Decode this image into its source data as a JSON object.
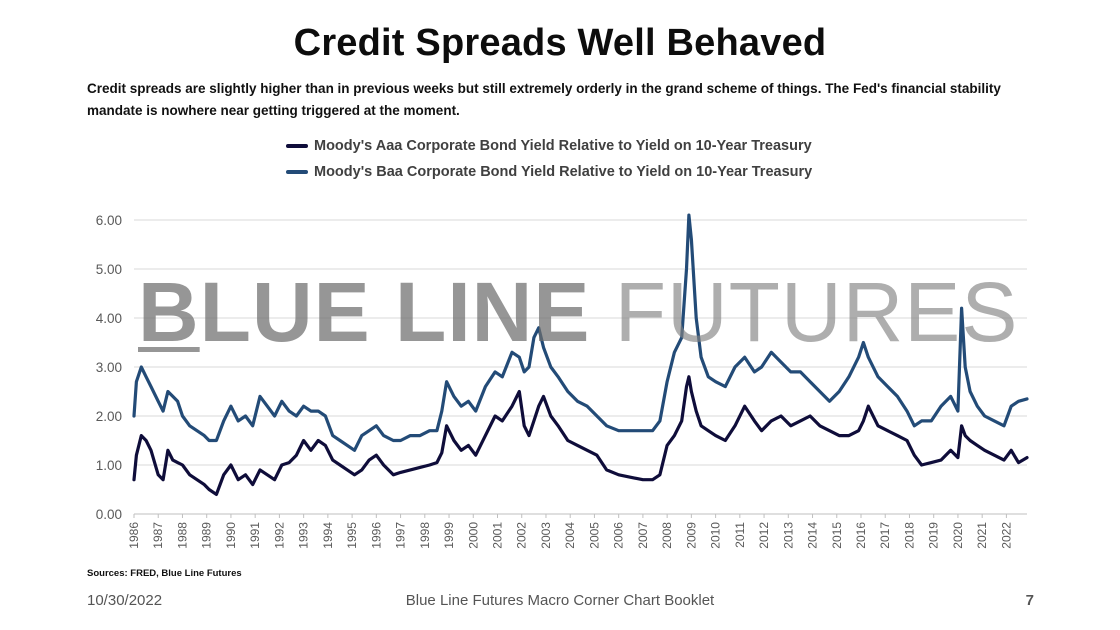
{
  "title": "Credit Spreads Well Behaved",
  "subtitle": "Credit spreads are slightly higher than in previous weeks but still extremely orderly in the grand scheme of things. The Fed's financial stability mandate is nowhere near getting triggered at the moment.",
  "watermark": {
    "part1": "B",
    "part2": "LUE LINE",
    "part3": " FUTURES"
  },
  "sources": "Sources: FRED, Blue Line Futures",
  "footer": {
    "date": "10/30/2022",
    "center": "Blue Line Futures Macro Corner Chart Booklet",
    "page": "7"
  },
  "chart_data": {
    "type": "line",
    "title": "",
    "xlabel": "",
    "ylabel": "",
    "ylim": [
      0,
      6
    ],
    "xlim": [
      1986,
      2022.85
    ],
    "y_ticks": [
      "0.00",
      "1.00",
      "2.00",
      "3.00",
      "4.00",
      "5.00",
      "6.00"
    ],
    "x_ticks": [
      "1986",
      "1987",
      "1988",
      "1989",
      "1990",
      "1991",
      "1992",
      "1993",
      "1994",
      "1995",
      "1996",
      "1997",
      "1998",
      "1999",
      "2000",
      "2001",
      "2002",
      "2003",
      "2004",
      "2005",
      "2006",
      "2007",
      "2008",
      "2009",
      "2010",
      "2011",
      "2012",
      "2013",
      "2014",
      "2015",
      "2016",
      "2017",
      "2018",
      "2019",
      "2020",
      "2021",
      "2022"
    ],
    "grid": true,
    "legend_position": "top-center",
    "series": [
      {
        "name": "Moody's Aaa Corporate Bond Yield Relative to Yield on 10-Year Treasury",
        "color": "#0f0d3a",
        "x": [
          1986.0,
          1986.1,
          1986.3,
          1986.5,
          1986.7,
          1987.0,
          1987.2,
          1987.4,
          1987.6,
          1987.8,
          1988.0,
          1988.3,
          1988.6,
          1988.9,
          1989.1,
          1989.4,
          1989.7,
          1990.0,
          1990.3,
          1990.6,
          1990.9,
          1991.2,
          1991.5,
          1991.8,
          1992.1,
          1992.4,
          1992.7,
          1993.0,
          1993.3,
          1993.6,
          1993.9,
          1994.2,
          1994.5,
          1994.8,
          1995.1,
          1995.4,
          1995.7,
          1996.0,
          1996.3,
          1996.7,
          1997.0,
          1997.4,
          1997.8,
          1998.2,
          1998.5,
          1998.7,
          1998.9,
          1999.2,
          1999.5,
          1999.8,
          2000.1,
          2000.5,
          2000.9,
          2001.2,
          2001.6,
          2001.9,
          2002.1,
          2002.3,
          2002.5,
          2002.7,
          2002.9,
          2003.2,
          2003.5,
          2003.9,
          2004.3,
          2004.7,
          2005.1,
          2005.5,
          2006.0,
          2006.5,
          2007.0,
          2007.4,
          2007.7,
          2008.0,
          2008.3,
          2008.6,
          2008.8,
          2008.9,
          2009.0,
          2009.2,
          2009.4,
          2009.7,
          2010.0,
          2010.4,
          2010.8,
          2011.2,
          2011.6,
          2011.9,
          2012.3,
          2012.7,
          2013.1,
          2013.5,
          2013.9,
          2014.3,
          2014.7,
          2015.1,
          2015.5,
          2015.9,
          2016.1,
          2016.3,
          2016.7,
          2017.1,
          2017.5,
          2017.9,
          2018.2,
          2018.5,
          2018.9,
          2019.3,
          2019.7,
          2020.0,
          2020.15,
          2020.3,
          2020.5,
          2020.8,
          2021.1,
          2021.5,
          2021.9,
          2022.2,
          2022.5,
          2022.85
        ],
        "y": [
          0.7,
          1.2,
          1.6,
          1.5,
          1.3,
          0.8,
          0.7,
          1.3,
          1.1,
          1.05,
          1.0,
          0.8,
          0.7,
          0.6,
          0.5,
          0.4,
          0.8,
          1.0,
          0.7,
          0.8,
          0.6,
          0.9,
          0.8,
          0.7,
          1.0,
          1.05,
          1.2,
          1.5,
          1.3,
          1.5,
          1.4,
          1.1,
          1.0,
          0.9,
          0.8,
          0.9,
          1.1,
          1.2,
          1.0,
          0.8,
          0.85,
          0.9,
          0.95,
          1.0,
          1.05,
          1.25,
          1.8,
          1.5,
          1.3,
          1.4,
          1.2,
          1.6,
          2.0,
          1.9,
          2.2,
          2.5,
          1.8,
          1.6,
          1.9,
          2.2,
          2.4,
          2.0,
          1.8,
          1.5,
          1.4,
          1.3,
          1.2,
          0.9,
          0.8,
          0.75,
          0.7,
          0.7,
          0.8,
          1.4,
          1.6,
          1.9,
          2.6,
          2.8,
          2.5,
          2.1,
          1.8,
          1.7,
          1.6,
          1.5,
          1.8,
          2.2,
          1.9,
          1.7,
          1.9,
          2.0,
          1.8,
          1.9,
          2.0,
          1.8,
          1.7,
          1.6,
          1.6,
          1.7,
          1.9,
          2.2,
          1.8,
          1.7,
          1.6,
          1.5,
          1.2,
          1.0,
          1.05,
          1.1,
          1.3,
          1.15,
          1.8,
          1.6,
          1.5,
          1.4,
          1.3,
          1.2,
          1.1,
          1.3,
          1.05,
          1.15
        ]
      },
      {
        "name": "Moody's Baa Corporate Bond Yield Relative to Yield on 10-Year Treasury",
        "color": "#234b77",
        "x": [
          1986.0,
          1986.1,
          1986.3,
          1986.5,
          1986.7,
          1987.0,
          1987.2,
          1987.4,
          1987.6,
          1987.8,
          1988.0,
          1988.3,
          1988.6,
          1988.9,
          1989.1,
          1989.4,
          1989.7,
          1990.0,
          1990.3,
          1990.6,
          1990.9,
          1991.2,
          1991.5,
          1991.8,
          1992.1,
          1992.4,
          1992.7,
          1993.0,
          1993.3,
          1993.6,
          1993.9,
          1994.2,
          1994.5,
          1994.8,
          1995.1,
          1995.4,
          1995.7,
          1996.0,
          1996.3,
          1996.7,
          1997.0,
          1997.4,
          1997.8,
          1998.2,
          1998.5,
          1998.7,
          1998.9,
          1999.2,
          1999.5,
          1999.8,
          2000.1,
          2000.5,
          2000.9,
          2001.2,
          2001.6,
          2001.9,
          2002.1,
          2002.3,
          2002.5,
          2002.7,
          2002.9,
          2003.2,
          2003.5,
          2003.9,
          2004.3,
          2004.7,
          2005.1,
          2005.5,
          2006.0,
          2006.5,
          2007.0,
          2007.4,
          2007.7,
          2008.0,
          2008.3,
          2008.6,
          2008.8,
          2008.9,
          2009.0,
          2009.2,
          2009.4,
          2009.7,
          2010.0,
          2010.4,
          2010.8,
          2011.2,
          2011.6,
          2011.9,
          2012.3,
          2012.7,
          2013.1,
          2013.5,
          2013.9,
          2014.3,
          2014.7,
          2015.1,
          2015.5,
          2015.9,
          2016.1,
          2016.3,
          2016.7,
          2017.1,
          2017.5,
          2017.9,
          2018.2,
          2018.5,
          2018.9,
          2019.3,
          2019.7,
          2020.0,
          2020.15,
          2020.3,
          2020.5,
          2020.8,
          2021.1,
          2021.5,
          2021.9,
          2022.2,
          2022.5,
          2022.85
        ],
        "y": [
          2.0,
          2.7,
          3.0,
          2.8,
          2.6,
          2.3,
          2.1,
          2.5,
          2.4,
          2.3,
          2.0,
          1.8,
          1.7,
          1.6,
          1.5,
          1.5,
          1.9,
          2.2,
          1.9,
          2.0,
          1.8,
          2.4,
          2.2,
          2.0,
          2.3,
          2.1,
          2.0,
          2.2,
          2.1,
          2.1,
          2.0,
          1.6,
          1.5,
          1.4,
          1.3,
          1.6,
          1.7,
          1.8,
          1.6,
          1.5,
          1.5,
          1.6,
          1.6,
          1.7,
          1.7,
          2.1,
          2.7,
          2.4,
          2.2,
          2.3,
          2.1,
          2.6,
          2.9,
          2.8,
          3.3,
          3.2,
          2.9,
          3.0,
          3.6,
          3.8,
          3.4,
          3.0,
          2.8,
          2.5,
          2.3,
          2.2,
          2.0,
          1.8,
          1.7,
          1.7,
          1.7,
          1.7,
          1.9,
          2.7,
          3.3,
          3.6,
          5.0,
          6.1,
          5.6,
          4.0,
          3.2,
          2.8,
          2.7,
          2.6,
          3.0,
          3.2,
          2.9,
          3.0,
          3.3,
          3.1,
          2.9,
          2.9,
          2.7,
          2.5,
          2.3,
          2.5,
          2.8,
          3.2,
          3.5,
          3.2,
          2.8,
          2.6,
          2.4,
          2.1,
          1.8,
          1.9,
          1.9,
          2.2,
          2.4,
          2.1,
          4.2,
          3.0,
          2.5,
          2.2,
          2.0,
          1.9,
          1.8,
          2.2,
          2.3,
          2.35
        ]
      }
    ]
  }
}
